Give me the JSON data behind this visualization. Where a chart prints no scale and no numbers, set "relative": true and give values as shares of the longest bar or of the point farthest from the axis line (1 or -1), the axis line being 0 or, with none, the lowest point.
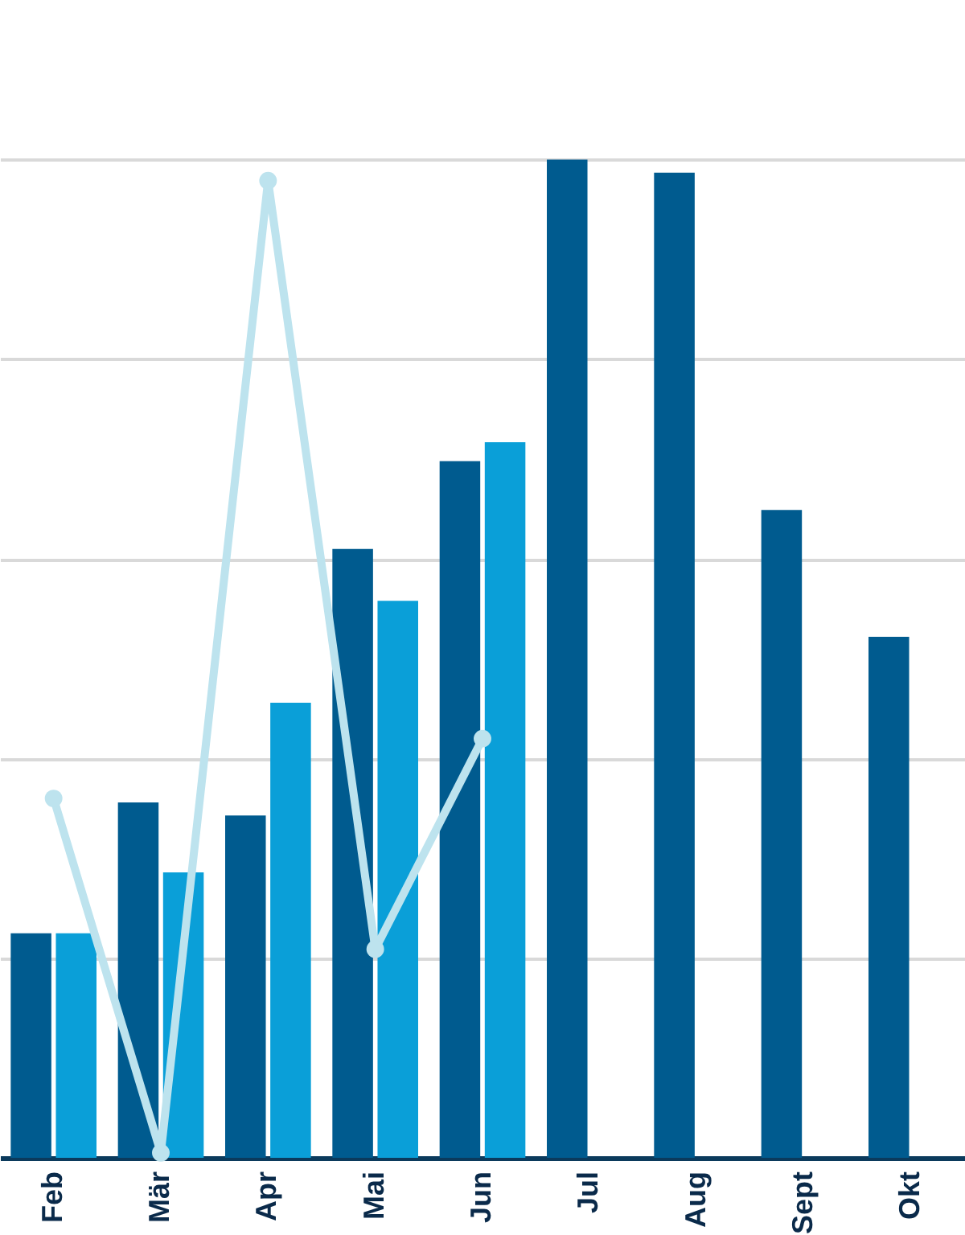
{
  "chart_data": {
    "type": "bar",
    "relative": true,
    "grid": "y",
    "legend": false,
    "categories": [
      "Feb",
      "Mär",
      "Apr",
      "Mai",
      "Jun",
      "Jul",
      "Aug",
      "Sept",
      "Okt"
    ],
    "series": [
      {
        "color": "#005b8f",
        "values": [
          0.225,
          0.356,
          0.343,
          0.61,
          0.698,
          1,
          0.987,
          0.649,
          0.522
        ]
      },
      {
        "color": "#0a9fd8",
        "values": [
          0.225,
          0.286,
          0.456,
          0.558,
          0.717,
          null,
          null,
          null,
          null
        ]
      },
      {
        "type": "line",
        "marker": "circle",
        "color": "#bde3ee",
        "values": [
          0.36,
          0.005,
          0.979,
          0.209,
          0.42,
          null,
          null,
          null,
          null
        ]
      }
    ]
  }
}
